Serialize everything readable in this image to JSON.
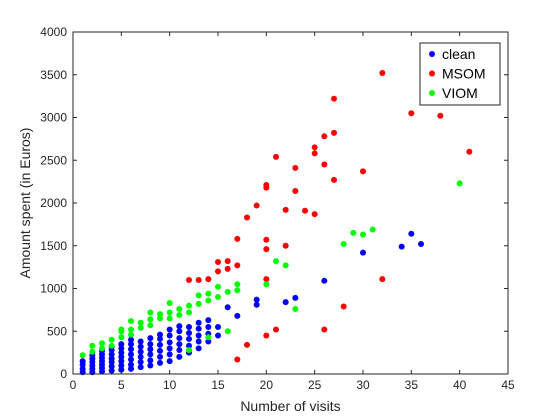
{
  "chart_data": {
    "type": "scatter",
    "title": "",
    "xlabel": "Number of visits",
    "ylabel": "Amount spent (in Euros)",
    "xlim": [
      0,
      45
    ],
    "ylim": [
      0,
      4000
    ],
    "xticks": [
      0,
      5,
      10,
      15,
      20,
      25,
      30,
      35,
      40,
      45
    ],
    "yticks": [
      0,
      500,
      1000,
      1500,
      2000,
      2500,
      3000,
      3500,
      4000
    ],
    "grid": false,
    "legend_position": "top-right",
    "series": [
      {
        "name": "clean",
        "color": "#0000ff",
        "points": [
          [
            1,
            20
          ],
          [
            1,
            60
          ],
          [
            1,
            110
          ],
          [
            1,
            150
          ],
          [
            2,
            20
          ],
          [
            2,
            60
          ],
          [
            2,
            100
          ],
          [
            2,
            140
          ],
          [
            2,
            180
          ],
          [
            2,
            220
          ],
          [
            3,
            30
          ],
          [
            3,
            70
          ],
          [
            3,
            110
          ],
          [
            3,
            150
          ],
          [
            3,
            190
          ],
          [
            3,
            230
          ],
          [
            3,
            270
          ],
          [
            4,
            40
          ],
          [
            4,
            90
          ],
          [
            4,
            140
          ],
          [
            4,
            180
          ],
          [
            4,
            230
          ],
          [
            4,
            280
          ],
          [
            4,
            320
          ],
          [
            5,
            50
          ],
          [
            5,
            100
          ],
          [
            5,
            150
          ],
          [
            5,
            200
          ],
          [
            5,
            250
          ],
          [
            5,
            300
          ],
          [
            5,
            350
          ],
          [
            6,
            60
          ],
          [
            6,
            110
          ],
          [
            6,
            170
          ],
          [
            6,
            230
          ],
          [
            6,
            290
          ],
          [
            6,
            350
          ],
          [
            6,
            400
          ],
          [
            7,
            80
          ],
          [
            7,
            140
          ],
          [
            7,
            200
          ],
          [
            7,
            260
          ],
          [
            7,
            320
          ],
          [
            7,
            380
          ],
          [
            8,
            100
          ],
          [
            8,
            160
          ],
          [
            8,
            230
          ],
          [
            8,
            290
          ],
          [
            8,
            350
          ],
          [
            8,
            420
          ],
          [
            9,
            130
          ],
          [
            9,
            200
          ],
          [
            9,
            270
          ],
          [
            9,
            340
          ],
          [
            9,
            410
          ],
          [
            9,
            460
          ],
          [
            10,
            150
          ],
          [
            10,
            230
          ],
          [
            10,
            300
          ],
          [
            10,
            370
          ],
          [
            10,
            450
          ],
          [
            10,
            520
          ],
          [
            11,
            200
          ],
          [
            11,
            280
          ],
          [
            11,
            350
          ],
          [
            11,
            420
          ],
          [
            11,
            500
          ],
          [
            11,
            560
          ],
          [
            12,
            250
          ],
          [
            12,
            330
          ],
          [
            12,
            410
          ],
          [
            12,
            480
          ],
          [
            12,
            550
          ],
          [
            13,
            300
          ],
          [
            13,
            380
          ],
          [
            13,
            450
          ],
          [
            13,
            530
          ],
          [
            13,
            600
          ],
          [
            14,
            380
          ],
          [
            14,
            470
          ],
          [
            14,
            550
          ],
          [
            14,
            630
          ],
          [
            15,
            450
          ],
          [
            15,
            550
          ],
          [
            16,
            780
          ],
          [
            17,
            680
          ],
          [
            19,
            810
          ],
          [
            19,
            870
          ],
          [
            22,
            840
          ],
          [
            23,
            890
          ],
          [
            26,
            1090
          ],
          [
            30,
            1420
          ],
          [
            34,
            1490
          ],
          [
            35,
            1640
          ],
          [
            36,
            1520
          ]
        ]
      },
      {
        "name": "MSOM",
        "color": "#ff0000",
        "points": [
          [
            12,
            1100
          ],
          [
            13,
            1100
          ],
          [
            14,
            1110
          ],
          [
            15,
            1200
          ],
          [
            15,
            1310
          ],
          [
            16,
            1230
          ],
          [
            16,
            1320
          ],
          [
            17,
            1270
          ],
          [
            17,
            1580
          ],
          [
            17,
            170
          ],
          [
            18,
            1830
          ],
          [
            18,
            340
          ],
          [
            19,
            1970
          ],
          [
            20,
            1110
          ],
          [
            20,
            1460
          ],
          [
            20,
            1570
          ],
          [
            20,
            2180
          ],
          [
            20,
            2210
          ],
          [
            20,
            450
          ],
          [
            21,
            2540
          ],
          [
            21,
            520
          ],
          [
            22,
            1500
          ],
          [
            22,
            1920
          ],
          [
            23,
            2140
          ],
          [
            23,
            2410
          ],
          [
            24,
            1910
          ],
          [
            25,
            1870
          ],
          [
            25,
            2580
          ],
          [
            25,
            2650
          ],
          [
            26,
            2450
          ],
          [
            26,
            2780
          ],
          [
            26,
            520
          ],
          [
            27,
            2270
          ],
          [
            27,
            2820
          ],
          [
            27,
            3220
          ],
          [
            28,
            790
          ],
          [
            30,
            2370
          ],
          [
            32,
            3520
          ],
          [
            32,
            1110
          ],
          [
            35,
            3050
          ],
          [
            38,
            3020
          ],
          [
            41,
            2600
          ]
        ]
      },
      {
        "name": "VIOM",
        "color": "#00ff00",
        "points": [
          [
            1,
            220
          ],
          [
            2,
            260
          ],
          [
            2,
            330
          ],
          [
            3,
            300
          ],
          [
            3,
            360
          ],
          [
            4,
            330
          ],
          [
            4,
            400
          ],
          [
            5,
            430
          ],
          [
            5,
            500
          ],
          [
            5,
            520
          ],
          [
            6,
            460
          ],
          [
            6,
            520
          ],
          [
            6,
            620
          ],
          [
            7,
            540
          ],
          [
            7,
            600
          ],
          [
            8,
            570
          ],
          [
            8,
            640
          ],
          [
            8,
            720
          ],
          [
            9,
            650
          ],
          [
            9,
            700
          ],
          [
            10,
            650
          ],
          [
            10,
            720
          ],
          [
            10,
            830
          ],
          [
            11,
            690
          ],
          [
            11,
            760
          ],
          [
            12,
            720
          ],
          [
            12,
            800
          ],
          [
            12,
            280
          ],
          [
            13,
            820
          ],
          [
            13,
            920
          ],
          [
            14,
            860
          ],
          [
            14,
            940
          ],
          [
            14,
            430
          ],
          [
            15,
            900
          ],
          [
            15,
            1020
          ],
          [
            16,
            960
          ],
          [
            16,
            500
          ],
          [
            17,
            980
          ],
          [
            17,
            1050
          ],
          [
            20,
            1050
          ],
          [
            21,
            1320
          ],
          [
            22,
            1270
          ],
          [
            23,
            760
          ],
          [
            28,
            1520
          ],
          [
            29,
            1650
          ],
          [
            30,
            1630
          ],
          [
            31,
            1690
          ],
          [
            40,
            2230
          ]
        ]
      }
    ]
  }
}
